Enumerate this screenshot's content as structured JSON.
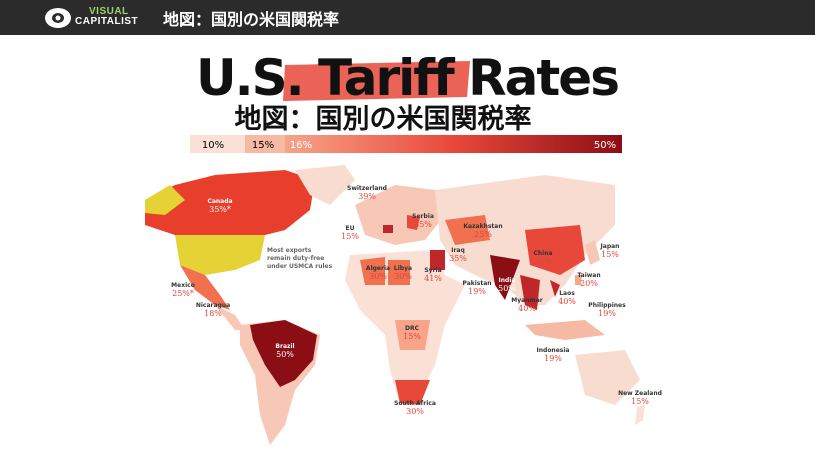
{
  "header": {
    "logo": [
      "VISUAL",
      "CAPITALIST"
    ],
    "title": "地図：国別の米国関税率"
  },
  "infographic": {
    "title": "U.S. Tariff Rates",
    "subtitle": "地図：国別の米国関税率",
    "legend": [
      "10%",
      "15%",
      "16%",
      "50%"
    ],
    "note": [
      "Most exports",
      "remain duty-free",
      "under USMCA rules"
    ],
    "labels": [
      {
        "name": "Canada",
        "rate": "35%*"
      },
      {
        "name": "Mexico",
        "rate": "25%*"
      },
      {
        "name": "Nicaragua",
        "rate": "18%"
      },
      {
        "name": "Brazil",
        "rate": "50%"
      },
      {
        "name": "Switzerland",
        "rate": "39%"
      },
      {
        "name": "EU",
        "rate": "15%"
      },
      {
        "name": "Serbia",
        "rate": "35%"
      },
      {
        "name": "Algeria",
        "rate": "30%"
      },
      {
        "name": "Libya",
        "rate": "30%"
      },
      {
        "name": "Syria",
        "rate": "41%"
      },
      {
        "name": "Iraq",
        "rate": "35%"
      },
      {
        "name": "Kazakhstan",
        "rate": "25%"
      },
      {
        "name": "China",
        "rate": "30%"
      },
      {
        "name": "Japan",
        "rate": "15%"
      },
      {
        "name": "Taiwan",
        "rate": "20%"
      },
      {
        "name": "Pakistan",
        "rate": "19%"
      },
      {
        "name": "India",
        "rate": "50%"
      },
      {
        "name": "Myanmar",
        "rate": "40%"
      },
      {
        "name": "Laos",
        "rate": "40%"
      },
      {
        "name": "Philippines",
        "rate": "19%"
      },
      {
        "name": "DRC",
        "rate": "15%"
      },
      {
        "name": "Indonesia",
        "rate": "19%"
      },
      {
        "name": "South Africa",
        "rate": "30%"
      },
      {
        "name": "New Zealand",
        "rate": "15%"
      }
    ]
  }
}
